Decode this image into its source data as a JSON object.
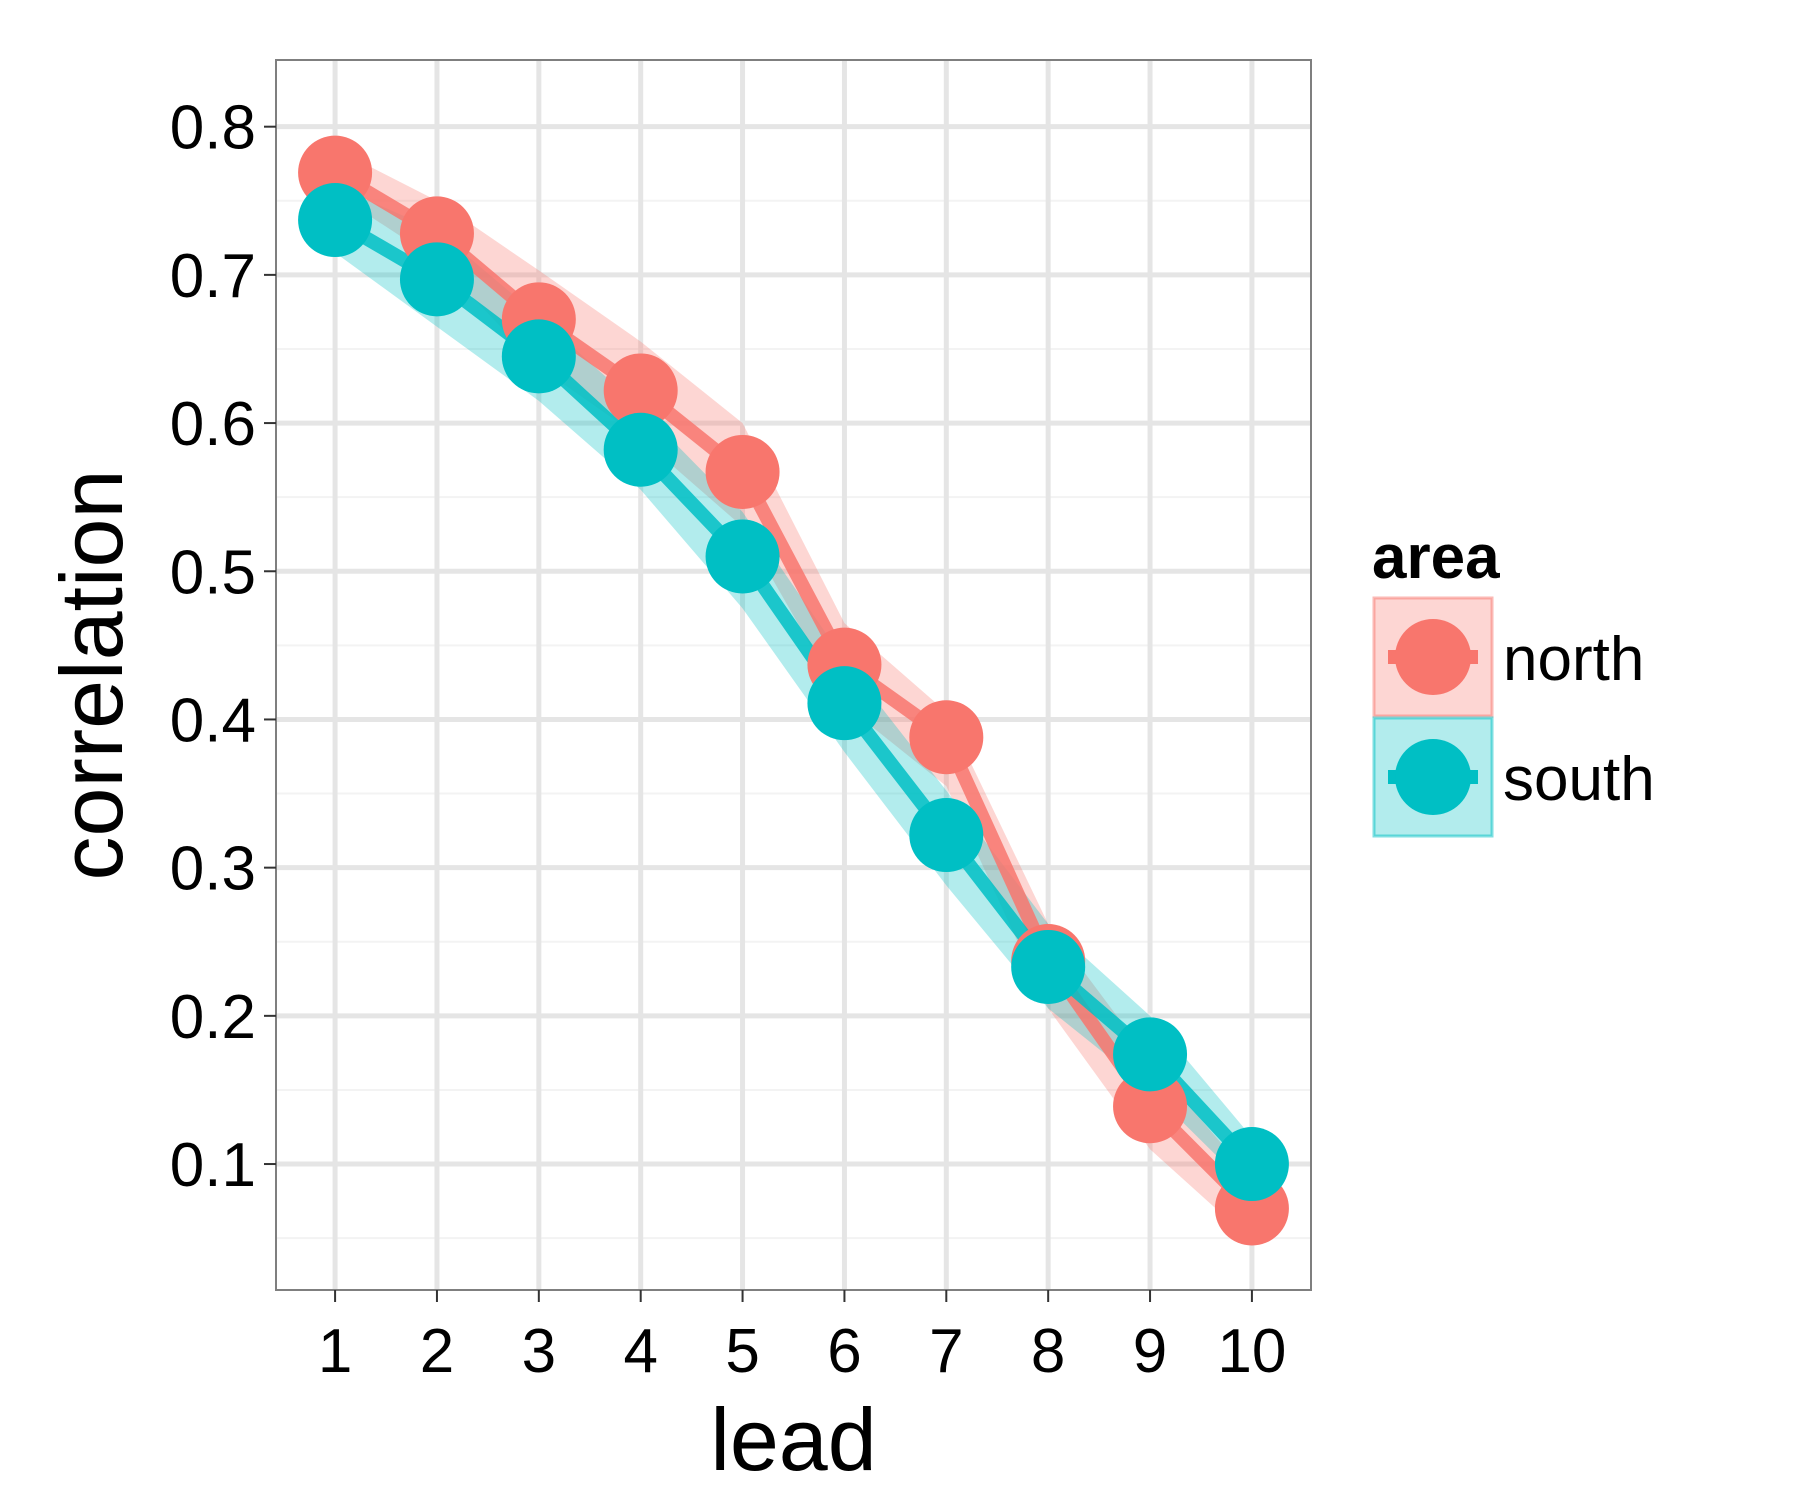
{
  "chart_data": {
    "type": "line",
    "xlabel": "lead",
    "ylabel": "correlation",
    "x": [
      1,
      2,
      3,
      4,
      5,
      6,
      7,
      8,
      9,
      10
    ],
    "x_ticks": [
      "1",
      "2",
      "3",
      "4",
      "5",
      "6",
      "7",
      "8",
      "9",
      "10"
    ],
    "xlim": [
      0.42,
      10.58
    ],
    "ylim": [
      0.015,
      0.845
    ],
    "y_ticks": [
      "0.1",
      "0.2",
      "0.3",
      "0.4",
      "0.5",
      "0.6",
      "0.7",
      "0.8"
    ],
    "grid": true,
    "legend": {
      "title": "area",
      "position": "right"
    },
    "series": [
      {
        "name": "north",
        "color": "#F8766D",
        "values": [
          0.769,
          0.728,
          0.67,
          0.622,
          0.567,
          0.437,
          0.388,
          0.237,
          0.139,
          0.07
        ],
        "band_lower": [
          0.755,
          0.71,
          0.638,
          0.59,
          0.53,
          0.41,
          0.355,
          0.205,
          0.11,
          0.048
        ],
        "band_upper": [
          0.785,
          0.75,
          0.703,
          0.655,
          0.6,
          0.465,
          0.405,
          0.262,
          0.17,
          0.09
        ]
      },
      {
        "name": "south",
        "color": "#00BFC4",
        "values": [
          0.737,
          0.697,
          0.645,
          0.582,
          0.51,
          0.411,
          0.322,
          0.233,
          0.174,
          0.1
        ],
        "band_lower": [
          0.715,
          0.665,
          0.615,
          0.555,
          0.475,
          0.378,
          0.288,
          0.205,
          0.15,
          0.082
        ],
        "band_upper": [
          0.76,
          0.73,
          0.672,
          0.61,
          0.54,
          0.44,
          0.352,
          0.262,
          0.2,
          0.118
        ]
      }
    ]
  }
}
